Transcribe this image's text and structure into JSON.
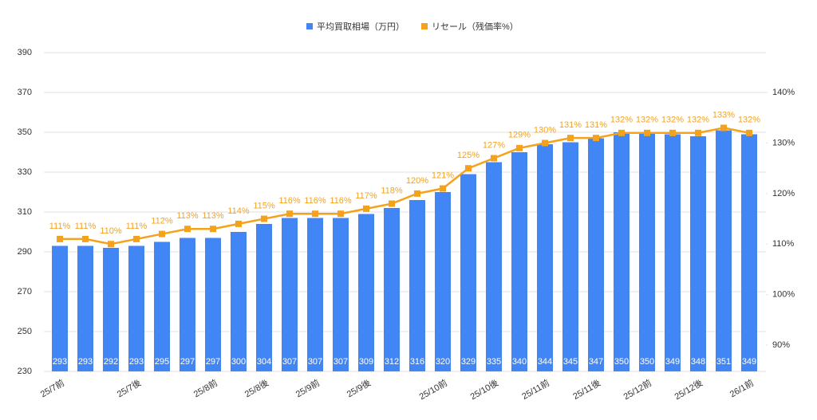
{
  "chart_data": {
    "type": "bar",
    "categories": [
      "25/7前",
      null,
      null,
      "25/7後",
      null,
      null,
      "25/8前",
      null,
      "25/8後",
      null,
      "25/9前",
      null,
      "25/9後",
      null,
      null,
      "25/10前",
      null,
      "25/10後",
      null,
      "25/11前",
      null,
      "25/11後",
      null,
      "25/12前",
      null,
      "25/12後",
      null,
      "26/1前"
    ],
    "series": [
      {
        "name": "平均買取相場（万円）",
        "type": "bar",
        "color": "#4285f4",
        "values": [
          293,
          293,
          292,
          293,
          295,
          297,
          297,
          300,
          304,
          307,
          307,
          307,
          309,
          312,
          316,
          320,
          329,
          335,
          340,
          344,
          345,
          347,
          350,
          350,
          349,
          348,
          351,
          349
        ]
      },
      {
        "name": "リセール（残価率%）",
        "type": "line",
        "color": "#f4a21b",
        "axis": "y2",
        "values": [
          111,
          111,
          110,
          111,
          112,
          113,
          113,
          114,
          115,
          116,
          116,
          116,
          117,
          118,
          120,
          121,
          125,
          127,
          129,
          130,
          131,
          131,
          132,
          132,
          132,
          132,
          133,
          132
        ],
        "value_labels": [
          "111%",
          "111%",
          "110%",
          "111%",
          "112%",
          "113%",
          "113%",
          "114%",
          "115%",
          "116%",
          "116%",
          "116%",
          "117%",
          "118%",
          "120%",
          "121%",
          "125%",
          "127%",
          "129%",
          "130%",
          "131%",
          "131%",
          "132%",
          "132%",
          "132%",
          "132%",
          "133%",
          "132%"
        ]
      }
    ],
    "ylim": [
      230,
      390
    ],
    "yticks": [
      230,
      250,
      270,
      290,
      310,
      330,
      350,
      370,
      390
    ],
    "y2lim": [
      84.8,
      147.9
    ],
    "y2ticks": [
      {
        "value": 90,
        "label": "90%"
      },
      {
        "value": 100,
        "label": "100%"
      },
      {
        "value": 110,
        "label": "110%"
      },
      {
        "value": 120,
        "label": "120%"
      },
      {
        "value": 130,
        "label": "130%"
      },
      {
        "value": 140,
        "label": "140%"
      }
    ],
    "grid": true
  }
}
